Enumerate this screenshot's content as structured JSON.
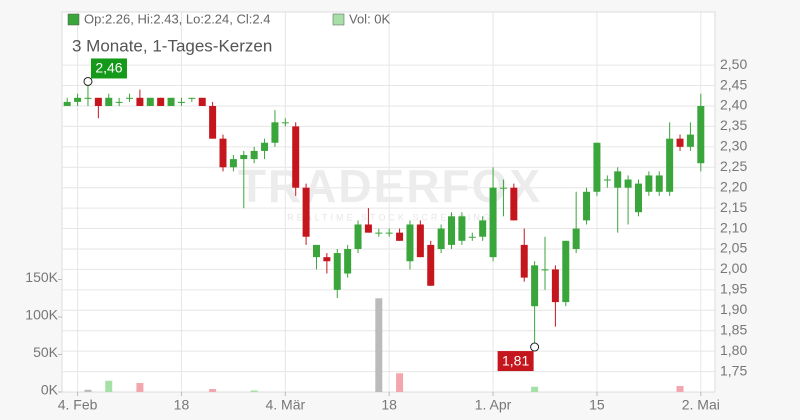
{
  "chart_data": {
    "type": "candlestick",
    "title": "3 Monate, 1-Tages-Kerzen",
    "ohlc_label": "Op:2.26, Hi:2.43, Lo:2.24, Cl:2.4",
    "volume_label": "Vol: 0K",
    "watermark": "TRADERFOX",
    "watermark_subtitle": "REALTIME STOCK SCREENING",
    "categories": [
      null,
      "4. Feb",
      null,
      null,
      null,
      null,
      null,
      null,
      null,
      null,
      null,
      "18",
      null,
      null,
      null,
      null,
      null,
      null,
      null,
      null,
      null,
      "4. Mär",
      null,
      null,
      null,
      null,
      null,
      null,
      null,
      null,
      null,
      "18",
      null,
      null,
      null,
      null,
      null,
      null,
      null,
      null,
      null,
      "1. Apr",
      null,
      null,
      null,
      null,
      null,
      null,
      null,
      null,
      null,
      "15",
      null,
      null,
      null,
      null,
      null,
      null,
      null,
      null,
      null,
      "2. Mai"
    ],
    "open": [
      2.4,
      2.41,
      2.42,
      2.42,
      2.4,
      2.41,
      2.42,
      2.42,
      2.4,
      2.42,
      2.4,
      2.41,
      2.42,
      2.42,
      2.4,
      2.32,
      2.25,
      2.27,
      2.27,
      2.29,
      2.31,
      2.36,
      2.35,
      2.2,
      2.03,
      2.03,
      1.95,
      1.99,
      2.05,
      2.11,
      2.09,
      2.09,
      2.09,
      2.02,
      2.11,
      2.06,
      2.05,
      2.06,
      2.07,
      2.08,
      2.08,
      2.03,
      2.2,
      2.2,
      2.06,
      1.91,
      2.0,
      2.0,
      1.92,
      2.05,
      2.12,
      2.19,
      2.22,
      2.2,
      2.2,
      2.14,
      2.19,
      2.19,
      2.19,
      2.32,
      2.3,
      2.26
    ],
    "high": [
      2.42,
      2.43,
      2.46,
      2.42,
      2.43,
      2.42,
      2.43,
      2.44,
      2.42,
      2.42,
      2.42,
      2.42,
      2.42,
      2.42,
      2.41,
      2.33,
      2.28,
      2.29,
      2.3,
      2.32,
      2.39,
      2.37,
      2.36,
      2.21,
      2.06,
      2.04,
      2.05,
      2.06,
      2.12,
      2.15,
      2.1,
      2.1,
      2.1,
      2.12,
      2.12,
      2.07,
      2.11,
      2.14,
      2.14,
      2.09,
      2.13,
      2.25,
      2.22,
      2.21,
      2.1,
      2.02,
      2.08,
      2.01,
      2.07,
      2.19,
      2.2,
      2.31,
      2.23,
      2.25,
      2.23,
      2.22,
      2.24,
      2.24,
      2.36,
      2.33,
      2.36,
      2.43
    ],
    "low": [
      2.4,
      2.4,
      2.4,
      2.37,
      2.4,
      2.4,
      2.41,
      2.4,
      2.4,
      2.4,
      2.4,
      2.4,
      2.41,
      2.4,
      2.32,
      2.24,
      2.24,
      2.15,
      2.26,
      2.27,
      2.3,
      2.35,
      2.18,
      2.06,
      2.0,
      1.99,
      1.93,
      1.98,
      2.04,
      2.09,
      2.08,
      2.08,
      2.07,
      2.0,
      2.03,
      1.96,
      2.04,
      2.05,
      2.06,
      2.07,
      2.07,
      2.02,
      2.13,
      2.12,
      1.97,
      1.81,
      1.95,
      1.86,
      1.91,
      2.04,
      2.11,
      2.18,
      2.2,
      2.09,
      2.11,
      2.13,
      2.18,
      2.18,
      2.18,
      2.29,
      2.29,
      2.24
    ],
    "close": [
      2.41,
      2.42,
      2.42,
      2.4,
      2.42,
      2.41,
      2.42,
      2.4,
      2.42,
      2.4,
      2.42,
      2.41,
      2.42,
      2.4,
      2.32,
      2.25,
      2.27,
      2.28,
      2.29,
      2.31,
      2.36,
      2.36,
      2.2,
      2.08,
      2.06,
      2.02,
      2.04,
      2.05,
      2.11,
      2.09,
      2.09,
      2.09,
      2.07,
      2.11,
      2.03,
      1.96,
      2.1,
      2.13,
      2.13,
      2.08,
      2.12,
      2.2,
      2.2,
      2.12,
      1.98,
      2.01,
      2.0,
      1.92,
      2.07,
      2.1,
      2.19,
      2.31,
      2.22,
      2.24,
      2.22,
      2.21,
      2.23,
      2.23,
      2.32,
      2.3,
      2.33,
      2.4
    ],
    "volume": [
      0,
      0,
      3000,
      0,
      15000,
      0,
      0,
      12000,
      0,
      0,
      0,
      0,
      0,
      0,
      4000,
      0,
      0,
      0,
      2000,
      0,
      0,
      0,
      0,
      0,
      0,
      0,
      0,
      0,
      0,
      0,
      125000,
      0,
      25000,
      0,
      0,
      0,
      0,
      0,
      0,
      0,
      0,
      0,
      0,
      0,
      0,
      7000,
      0,
      0,
      0,
      0,
      0,
      0,
      0,
      0,
      0,
      0,
      0,
      0,
      0,
      8000,
      0,
      0
    ],
    "up_color": "#3aa53a",
    "down_color": "#c4161c",
    "volume_up_color": "#a6e0a6",
    "volume_down_color": "#f4a6ae",
    "volume_flat_color": "#bbbbbb",
    "ylim": [
      1.7,
      2.63
    ],
    "yticks": [
      {
        "value": 1.75,
        "label": "1,75"
      },
      {
        "value": 1.8,
        "label": "1,80"
      },
      {
        "value": 1.85,
        "label": "1,85"
      },
      {
        "value": 1.9,
        "label": "1,90"
      },
      {
        "value": 1.95,
        "label": "1,95"
      },
      {
        "value": 2.0,
        "label": "2,00"
      },
      {
        "value": 2.05,
        "label": "2,05"
      },
      {
        "value": 2.1,
        "label": "2,10"
      },
      {
        "value": 2.15,
        "label": "2,15"
      },
      {
        "value": 2.2,
        "label": "2,20"
      },
      {
        "value": 2.25,
        "label": "2,25"
      },
      {
        "value": 2.3,
        "label": "2,30"
      },
      {
        "value": 2.35,
        "label": "2,35"
      },
      {
        "value": 2.4,
        "label": "2,40"
      },
      {
        "value": 2.45,
        "label": "2,45"
      },
      {
        "value": 2.5,
        "label": "2,50"
      }
    ],
    "y2lim": [
      0,
      500000
    ],
    "y2ticks": [
      {
        "value": 0,
        "label": "0K"
      },
      {
        "value": 50000,
        "label": "50K"
      },
      {
        "value": 100000,
        "label": "100K"
      },
      {
        "value": 150000,
        "label": "150K"
      }
    ],
    "annotations": [
      {
        "label": "2,46",
        "value": 2.46,
        "color": "#14991a"
      },
      {
        "label": "1,81",
        "value": 1.81,
        "color": "#c4161c"
      }
    ],
    "grid": true
  }
}
